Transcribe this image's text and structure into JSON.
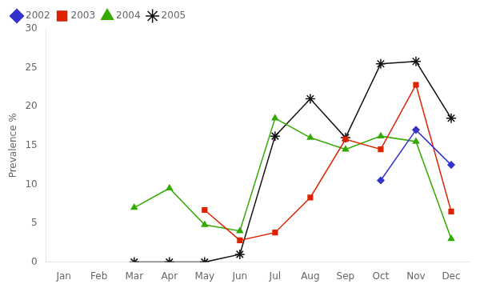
{
  "chart_data": {
    "type": "line",
    "categories": [
      "Jan",
      "Feb",
      "Mar",
      "Apr",
      "May",
      "Jun",
      "Jul",
      "Aug",
      "Sep",
      "Oct",
      "Nov",
      "Dec"
    ],
    "series": [
      {
        "name": "2002",
        "color": "#3333cc",
        "marker": "diamond",
        "values": [
          null,
          null,
          null,
          null,
          null,
          null,
          null,
          null,
          null,
          10.5,
          17.0,
          12.5
        ]
      },
      {
        "name": "2003",
        "color": "#dd2200",
        "marker": "square",
        "values": [
          null,
          null,
          null,
          null,
          6.7,
          2.8,
          3.8,
          8.3,
          15.8,
          14.5,
          22.8,
          6.5
        ]
      },
      {
        "name": "2004",
        "color": "#33aa00",
        "marker": "triangle",
        "values": [
          null,
          null,
          7.0,
          9.5,
          4.8,
          4.0,
          18.5,
          16.0,
          14.5,
          16.2,
          15.5,
          3.0
        ]
      },
      {
        "name": "2005",
        "color": "#111111",
        "marker": "star",
        "values": [
          null,
          null,
          0.0,
          0.0,
          0.0,
          1.0,
          16.2,
          21.0,
          16.0,
          25.5,
          25.8,
          18.5
        ]
      }
    ],
    "ylabel": "Prevalence %",
    "ylim": [
      0,
      30
    ],
    "yticks": [
      0,
      5,
      10,
      15,
      20,
      25,
      30
    ],
    "grid": false,
    "legend": "upper left"
  }
}
